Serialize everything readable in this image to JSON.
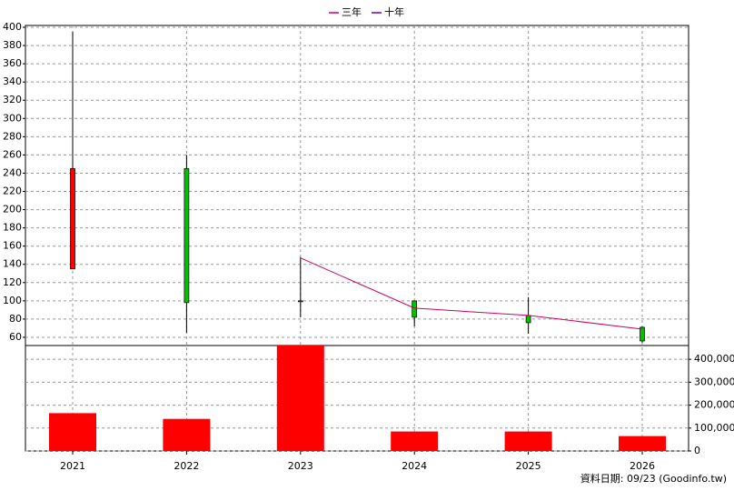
{
  "chart_data": {
    "type": "candlestick",
    "categories": [
      "2021",
      "2022",
      "2023",
      "2024",
      "2025",
      "2026"
    ],
    "ohlc": {
      "open": [
        135,
        245,
        100,
        100,
        84,
        71
      ],
      "high": [
        395,
        260,
        148,
        100,
        104,
        72
      ],
      "low": [
        135,
        65,
        82,
        72,
        64,
        54
      ],
      "close": [
        245,
        98,
        99,
        82,
        76,
        56
      ],
      "up_color": "#ff0000",
      "down_color": "#00c000"
    },
    "series": [
      {
        "name": "三年",
        "color": "#cc0066",
        "values": [
          null,
          null,
          147,
          92,
          84,
          69
        ]
      },
      {
        "name": "十年",
        "color": "#6600cc",
        "values": [
          null,
          null,
          null,
          null,
          null,
          null
        ]
      }
    ],
    "volume": {
      "values": [
        165000,
        140000,
        460000,
        85000,
        85000,
        65000
      ],
      "color": "#ff0000",
      "axis": "y2"
    },
    "ylim": [
      51,
      402
    ],
    "yticks": [
      60,
      80,
      100,
      120,
      140,
      160,
      180,
      200,
      220,
      240,
      260,
      280,
      300,
      320,
      340,
      360,
      380,
      400
    ],
    "y2lim": [
      0,
      460000
    ],
    "y2ticks": [
      0,
      {
        "value": 100000,
        "label": "100,000"
      },
      {
        "value": 200000,
        "label": "200,000"
      },
      {
        "value": 300000,
        "label": "300,000"
      },
      {
        "value": 400000,
        "label": "400,000"
      }
    ],
    "grid": true,
    "source": "資料日期: 09/23  (Goodinfo.tw)"
  }
}
